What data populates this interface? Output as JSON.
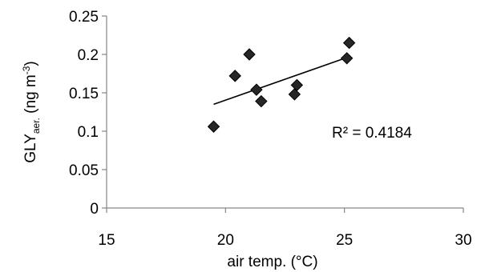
{
  "chart_data": {
    "type": "scatter",
    "xlabel": "air temp. (°C)",
    "ylabel": {
      "main": "GLY",
      "subscript": "aer.",
      "unit_prefix": " (ng m",
      "unit_superscript": "-3",
      "unit_suffix": ")"
    },
    "xlim": [
      15,
      30
    ],
    "ylim": [
      0,
      0.25
    ],
    "x_ticks": [
      "15",
      "20",
      "25",
      "30"
    ],
    "y_ticks": [
      "0",
      "0.05",
      "0.1",
      "0.15",
      "0.2",
      "0.25"
    ],
    "x_tick_values": [
      15,
      20,
      25,
      30
    ],
    "y_tick_values": [
      0,
      0.05,
      0.1,
      0.15,
      0.2,
      0.25
    ],
    "grid": false,
    "legend": false,
    "marker": "diamond",
    "marker_color": "#262626",
    "points": [
      {
        "x": 19.5,
        "y": 0.106
      },
      {
        "x": 20.4,
        "y": 0.172
      },
      {
        "x": 21.0,
        "y": 0.2
      },
      {
        "x": 21.3,
        "y": 0.154
      },
      {
        "x": 21.5,
        "y": 0.139
      },
      {
        "x": 22.9,
        "y": 0.148
      },
      {
        "x": 23.0,
        "y": 0.16
      },
      {
        "x": 25.1,
        "y": 0.195
      },
      {
        "x": 25.2,
        "y": 0.215
      }
    ],
    "trendline": {
      "type": "linear",
      "x_range": [
        19.5,
        25.2
      ],
      "y_range": [
        0.135,
        0.197
      ]
    },
    "annotation": "R² = 0.4184"
  }
}
